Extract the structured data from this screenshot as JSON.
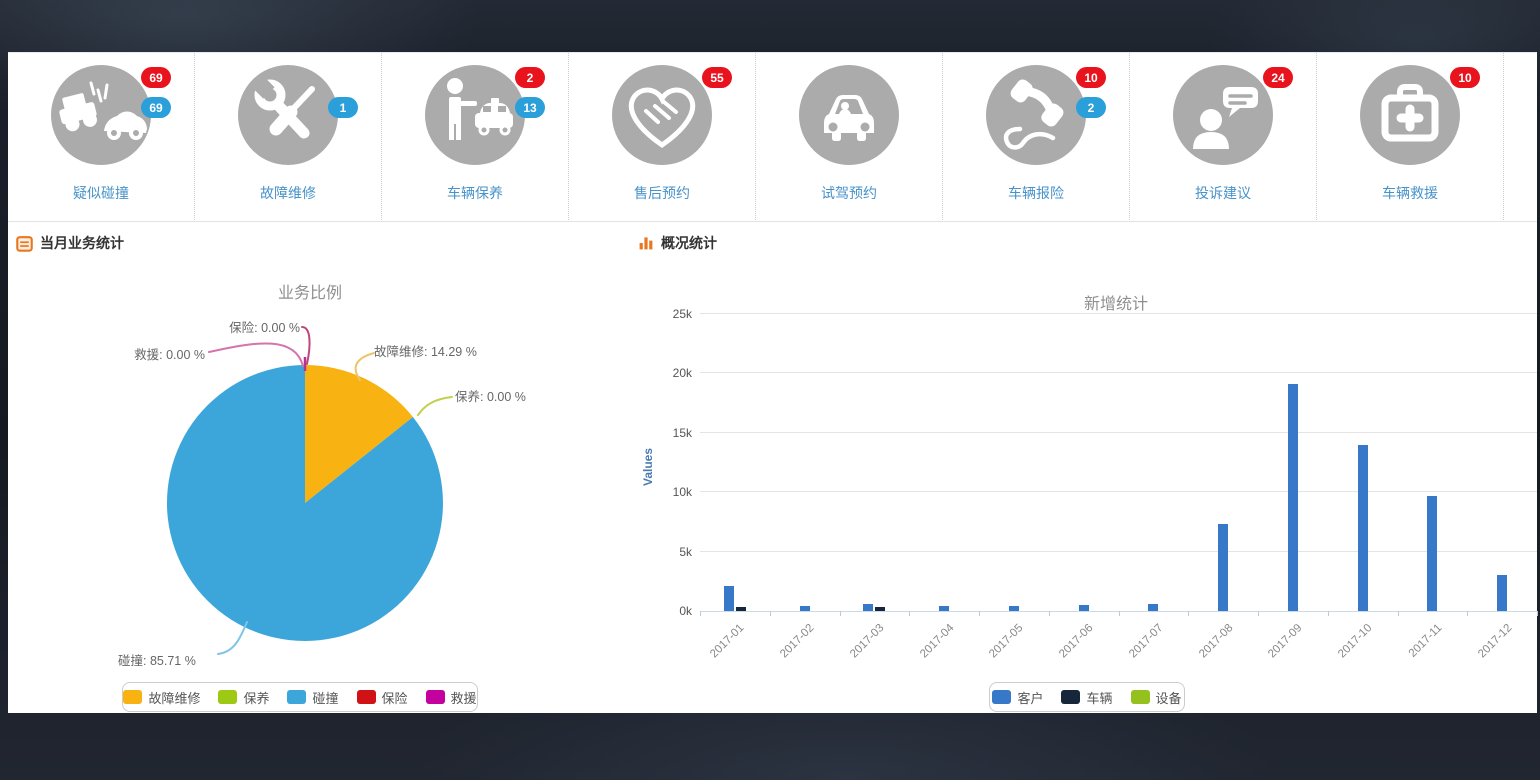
{
  "quick_actions": {
    "items": [
      {
        "label": "疑似碰撞",
        "icon": "car-crash-icon",
        "badges": [
          {
            "type": "red",
            "value": "69"
          },
          {
            "type": "blue",
            "value": "69"
          }
        ]
      },
      {
        "label": "故障维修",
        "icon": "repair-tools-icon",
        "badges": [
          {
            "type": "blue",
            "value": "1"
          }
        ]
      },
      {
        "label": "车辆保养",
        "icon": "person-car-icon",
        "badges": [
          {
            "type": "red",
            "value": "2"
          },
          {
            "type": "blue",
            "value": "13"
          }
        ]
      },
      {
        "label": "售后预约",
        "icon": "handshake-icon",
        "badges": [
          {
            "type": "red",
            "value": "55"
          }
        ]
      },
      {
        "label": "试驾预约",
        "icon": "car-front-icon",
        "badges": []
      },
      {
        "label": "车辆报险",
        "icon": "phone-icon",
        "badges": [
          {
            "type": "red",
            "value": "10"
          },
          {
            "type": "blue",
            "value": "2"
          }
        ]
      },
      {
        "label": "投诉建议",
        "icon": "feedback-icon",
        "badges": [
          {
            "type": "red",
            "value": "24"
          }
        ]
      },
      {
        "label": "车辆救援",
        "icon": "first-aid-icon",
        "badges": [
          {
            "type": "red",
            "value": "10"
          }
        ]
      }
    ]
  },
  "left_panel": {
    "header": "当月业务统计"
  },
  "right_panel": {
    "header": "概况统计"
  },
  "colors": {
    "badge_red": "#E8131D",
    "badge_blue": "#2B9FD9",
    "icon_gray": "#ABABAB",
    "accent_orange": "#E87722",
    "icon_label_blue": "#4792C9"
  },
  "chart_data": [
    {
      "type": "pie",
      "title": "业务比例",
      "slices": [
        {
          "label": "故障维修",
          "value": 14.29,
          "color": "#F8B211"
        },
        {
          "label": "保养",
          "value": 0.0,
          "color": "#9DC814"
        },
        {
          "label": "碰撞",
          "value": 85.71,
          "color": "#3CA6DB"
        },
        {
          "label": "保险",
          "value": 0.0,
          "color": "#D01217"
        },
        {
          "label": "救援",
          "value": 0.0,
          "color": "#C4009E"
        }
      ],
      "annotations": [
        "保险: 0.00 %",
        "救援: 0.00 %",
        "故障维修: 14.29 %",
        "保养: 0.00 %",
        "碰撞: 85.71 %"
      ],
      "legend": [
        "故障维修",
        "保养",
        "碰撞",
        "保险",
        "救援"
      ],
      "legend_position": "bottom"
    },
    {
      "type": "bar",
      "title": "新增统计",
      "ylabel": "Values",
      "categories": [
        "2017-01",
        "2017-02",
        "2017-03",
        "2017-04",
        "2017-05",
        "2017-06",
        "2017-07",
        "2017-08",
        "2017-09",
        "2017-10",
        "2017-11",
        "2017-12"
      ],
      "series": [
        {
          "name": "客户",
          "color": "#3778C8",
          "values": [
            2100,
            400,
            600,
            400,
            400,
            500,
            600,
            7300,
            19100,
            14000,
            9700,
            3000
          ]
        },
        {
          "name": "车辆",
          "color": "#16273B",
          "values": [
            300,
            0,
            300,
            0,
            0,
            0,
            0,
            0,
            0,
            0,
            0,
            0
          ]
        },
        {
          "name": "设备",
          "color": "#95C11F",
          "values": [
            0,
            0,
            0,
            0,
            0,
            0,
            0,
            0,
            0,
            0,
            0,
            0
          ]
        }
      ],
      "yticks": [
        "0k",
        "5k",
        "10k",
        "15k",
        "20k",
        "25k"
      ],
      "ylim": [
        0,
        25000
      ],
      "grid": true,
      "legend_position": "bottom"
    }
  ]
}
